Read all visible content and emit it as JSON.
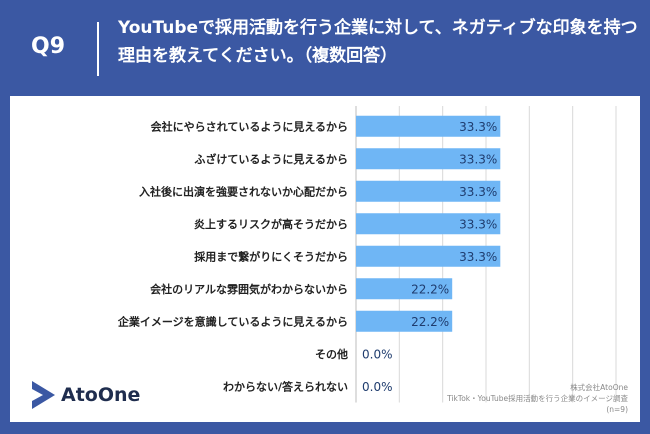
{
  "header": {
    "question_label": "Q9",
    "title": "YouTubeで採用活動を行う企業に対して、ネガティブな印象を持つ理由を教えてください。（複数回答）"
  },
  "chart_data": {
    "type": "bar",
    "orientation": "horizontal",
    "categories": [
      "会社にやらされているように見えるから",
      "ふざけているように見えるから",
      "入社後に出演を強要されないか心配だから",
      "炎上するリスクが高そうだから",
      "採用まで繋がりにくそうだから",
      "会社のリアルな雰囲気がわからないから",
      "企業イメージを意識しているように見えるから",
      "その他",
      "わからない/答えられない"
    ],
    "values": [
      33.3,
      33.3,
      33.3,
      33.3,
      33.3,
      22.2,
      22.2,
      0.0,
      0.0
    ],
    "value_labels": [
      "33.3%",
      "33.3%",
      "33.3%",
      "33.3%",
      "33.3%",
      "22.2%",
      "22.2%",
      "0.0%",
      "0.0%"
    ],
    "xlim": [
      0,
      60
    ],
    "bar_color": "#6fb6f5",
    "grid": true
  },
  "logo": {
    "text": "AtoOne",
    "icon": "atoone-play-icon",
    "color": "#3b58a3"
  },
  "credit": {
    "company": "株式会社AtoOne",
    "survey": "TikTok・YouTube採用活動を行う企業のイメージ調査",
    "sample": "(n=9)"
  },
  "colors": {
    "background": "#3b58a3",
    "panel": "#ffffff",
    "bar": "#6fb6f5",
    "text": "#222222",
    "value_label_inside": "#1f3c6e",
    "value_label_outside": "#1f3c6e",
    "grid": "#d9d9d9"
  }
}
